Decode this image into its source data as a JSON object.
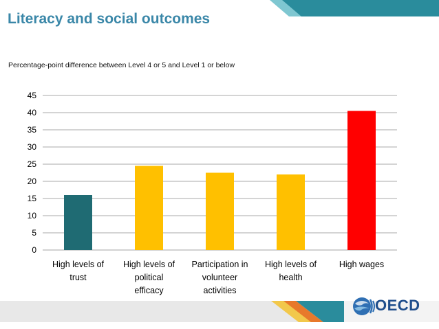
{
  "slide": {
    "title": "Literacy and social outcomes",
    "subtitle": "Percentage-point difference between Level 4 or 5 and Level 1 or below",
    "logo_text": "OECD",
    "colors": {
      "title": "#3a87a8",
      "banner_teal": "#2a8c9c",
      "banner_grey": "#e6e6e6"
    }
  },
  "chart_data": {
    "type": "bar",
    "categories": [
      [
        "High levels of",
        "trust"
      ],
      [
        "High levels of",
        "political",
        "efficacy"
      ],
      [
        "Participation in",
        "volunteer",
        "activities"
      ],
      [
        "High levels of",
        "health"
      ],
      [
        "High wages"
      ]
    ],
    "values": [
      16,
      24.5,
      22.5,
      22,
      40.5
    ],
    "colors": [
      "#1f6b73",
      "#ffc000",
      "#ffc000",
      "#ffc000",
      "#ff0000"
    ],
    "ylim": [
      0,
      45
    ],
    "yticks": [
      0,
      5,
      10,
      15,
      20,
      25,
      30,
      35,
      40,
      45
    ],
    "grid": true,
    "title": "",
    "xlabel": "",
    "ylabel": ""
  }
}
